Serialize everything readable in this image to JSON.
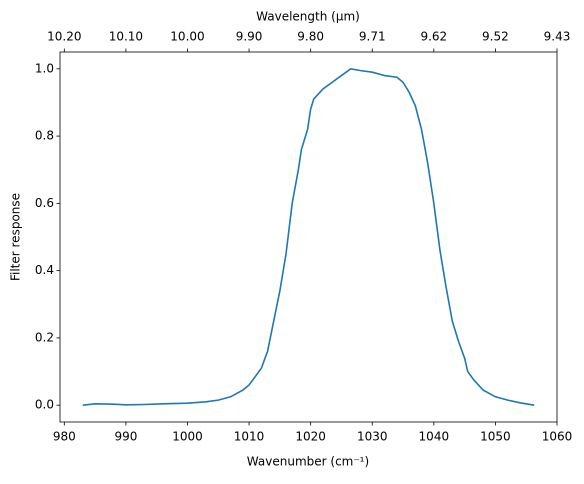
{
  "chart_data": {
    "type": "line",
    "xlabel": "Wavenumber (cm⁻¹)",
    "ylabel": "Filter response",
    "x2label": "Wavelength (μm)",
    "x": [
      983,
      985,
      988,
      990,
      993,
      996,
      1000,
      1003,
      1005,
      1007,
      1009,
      1010,
      1011,
      1012,
      1013,
      1014,
      1015,
      1016,
      1017,
      1018,
      1018.5,
      1019.5,
      1020,
      1020.5,
      1022,
      1023.5,
      1025,
      1026.5,
      1028,
      1030,
      1032,
      1034,
      1035,
      1036,
      1037,
      1038,
      1039,
      1040,
      1041,
      1042,
      1043,
      1044,
      1045,
      1045.5,
      1046.5,
      1048,
      1050,
      1052,
      1054,
      1056.3
    ],
    "values": [
      0.0,
      0.004,
      0.003,
      0.001,
      0.002,
      0.004,
      0.006,
      0.01,
      0.015,
      0.025,
      0.045,
      0.06,
      0.085,
      0.11,
      0.16,
      0.25,
      0.34,
      0.45,
      0.6,
      0.7,
      0.76,
      0.82,
      0.88,
      0.91,
      0.94,
      0.96,
      0.98,
      1.0,
      0.995,
      0.99,
      0.98,
      0.975,
      0.96,
      0.93,
      0.89,
      0.82,
      0.72,
      0.6,
      0.46,
      0.35,
      0.25,
      0.19,
      0.14,
      0.1,
      0.075,
      0.045,
      0.025,
      0.015,
      0.007,
      0.0
    ],
    "color": "#1f77b4",
    "xlim": [
      979.3,
      1060
    ],
    "xticks": [
      980,
      990,
      1000,
      1010,
      1020,
      1030,
      1040,
      1050,
      1060
    ],
    "x2ticks": [
      {
        "value": 980,
        "label": "10.20"
      },
      {
        "value": 990,
        "label": "10.10"
      },
      {
        "value": 1000,
        "label": "10.00"
      },
      {
        "value": 1010,
        "label": "9.90"
      },
      {
        "value": 1020,
        "label": "9.80"
      },
      {
        "value": 1030,
        "label": "9.71"
      },
      {
        "value": 1040,
        "label": "9.62"
      },
      {
        "value": 1050,
        "label": "9.52"
      },
      {
        "value": 1060,
        "label": "9.43"
      }
    ],
    "ylim": [
      -0.05,
      1.05
    ],
    "yticks": [
      {
        "value": 0,
        "label": "0.0"
      },
      0.2,
      0.4,
      0.6,
      0.8,
      {
        "value": 1,
        "label": "1.0"
      }
    ]
  }
}
